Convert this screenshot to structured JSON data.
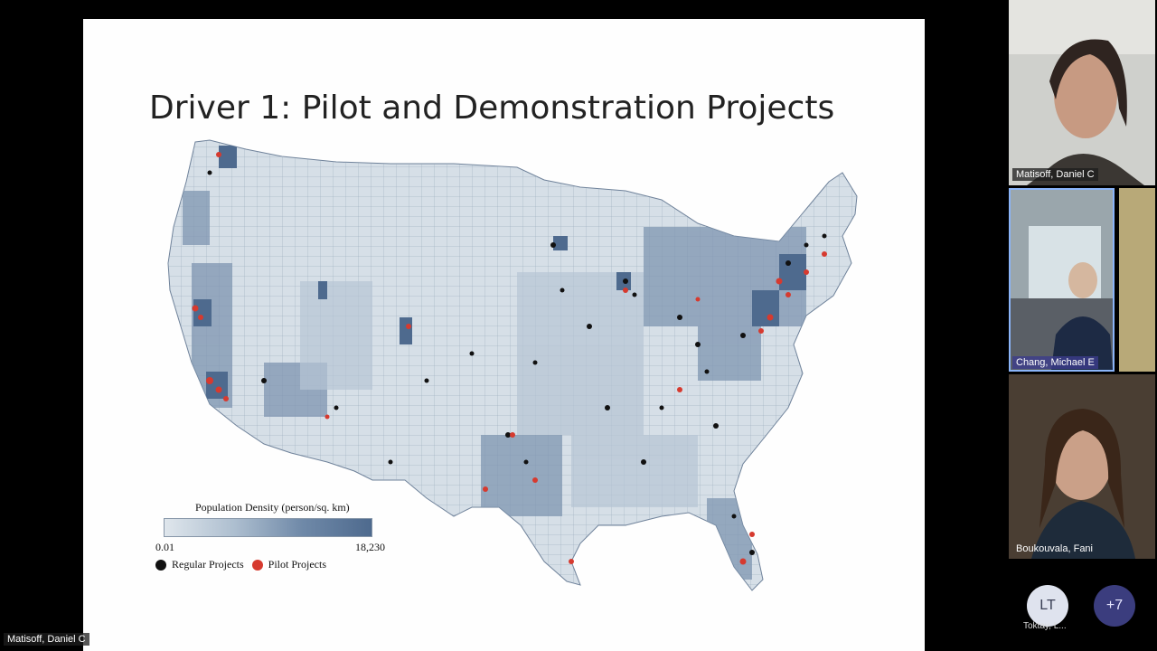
{
  "slide": {
    "title": "Driver 1: Pilot and Demonstration Projects",
    "legend": {
      "title": "Population Density (person/sq. km)",
      "min": "0.01",
      "max": "18,230",
      "regular": "Regular Projects",
      "pilot": "Pilot Projects"
    }
  },
  "presenter_label": "Matisoff, Daniel C",
  "participants": [
    {
      "name": "Matisoff, Daniel C"
    },
    {
      "name": "Chang, Michael E"
    },
    {
      "name": "Boukouvala, Fani"
    }
  ],
  "more_participants": {
    "initials": "LT",
    "name": "Toktay, L...",
    "overflow": "+7"
  },
  "colors": {
    "regular": "#111111",
    "pilot": "#d63a2f",
    "map_light": "#dfe6ec",
    "map_dark": "#4e6a8e"
  }
}
